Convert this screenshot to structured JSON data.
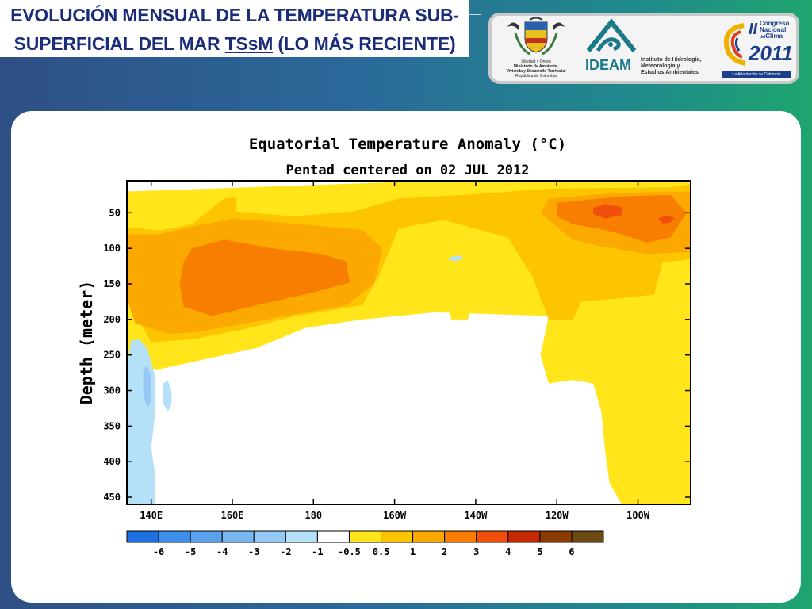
{
  "slide": {
    "title_line1": "EVOLUCIÓN MENSUAL DE LA TEMPERATURA SUB-",
    "title_line2_pre": "SUPERFICIAL DEL MAR ",
    "title_line2_u": "TSsM",
    "title_line2_post": " (LO MÁS RECIENTE)"
  },
  "logos": {
    "ministry": {
      "line1": "Libertad y Orden",
      "line2": "Ministerio de Ambiente,",
      "line3": "Vivienda y Desarrollo Territorial",
      "line4": "República de Colombia"
    },
    "ideam": {
      "word": "IDEAM",
      "sub1": "Instituto de Hidrología,",
      "sub2": "Meteorología y",
      "sub3": "Estudios Ambientales"
    },
    "congreso": {
      "numeral": "II",
      "line1": "Congreso",
      "line2": "Nacional",
      "line3_small": "del",
      "line3": "Clima",
      "year": "2011",
      "footer": "La Adaptación de Colombia"
    }
  },
  "chart_data": {
    "type": "heatmap",
    "title": "Equatorial Temperature Anomaly (°C)",
    "subtitle": "Pentad centered on 02 JUL 2012",
    "xlabel": "",
    "ylabel": "Depth (meter)",
    "x_ticks": [
      "140E",
      "160E",
      "180",
      "160W",
      "140W",
      "120W",
      "100W"
    ],
    "x_tick_lon_east": [
      140,
      160,
      180,
      200,
      220,
      240,
      260
    ],
    "xlim_lon_east": [
      134,
      273
    ],
    "y_ticks": [
      50,
      100,
      150,
      200,
      250,
      300,
      350,
      400,
      450
    ],
    "ylim": [
      5,
      460
    ],
    "colorbar": {
      "labels": [
        "-6",
        "-5",
        "-4",
        "-3",
        "-2",
        "-1",
        "-0.5",
        "0.5",
        "1",
        "2",
        "3",
        "4",
        "5",
        "6"
      ],
      "colors": [
        "#1e6fe0",
        "#3c8ee8",
        "#5aa2ee",
        "#78b6f2",
        "#96c8f6",
        "#b4e0f8",
        "#ffffff",
        "#ffe51a",
        "#fdc400",
        "#fba800",
        "#f77e00",
        "#ef4f0a",
        "#c62a00",
        "#8b3a00",
        "#6a4a10"
      ]
    },
    "regions": [
      {
        "level": "0.5",
        "color": "#ffe51a",
        "points": [
          [
            134,
            20
          ],
          [
            175,
            12
          ],
          [
            205,
            6
          ],
          [
            273,
            6
          ],
          [
            273,
            460
          ],
          [
            256,
            460
          ],
          [
            253,
            430
          ],
          [
            252,
            390
          ],
          [
            251,
            330
          ],
          [
            249,
            290
          ],
          [
            244,
            285
          ],
          [
            238,
            290
          ],
          [
            236,
            250
          ],
          [
            238,
            195
          ],
          [
            210,
            190
          ],
          [
            192,
            200
          ],
          [
            178,
            212
          ],
          [
            166,
            240
          ],
          [
            150,
            260
          ],
          [
            142,
            270
          ],
          [
            134,
            270
          ]
        ]
      },
      {
        "level": "0.5",
        "color": "#ffe51a",
        "points": [
          [
            195,
            90
          ],
          [
            201,
            60
          ],
          [
            208,
            36
          ],
          [
            214,
            45
          ],
          [
            220,
            100
          ],
          [
            222,
            140
          ],
          [
            218,
            200
          ],
          [
            214,
            200
          ],
          [
            212,
            145
          ],
          [
            206,
            110
          ],
          [
            200,
            100
          ]
        ]
      },
      {
        "level": "1",
        "color": "#fdc400",
        "points": [
          [
            134,
            70
          ],
          [
            142,
            75
          ],
          [
            150,
            66
          ],
          [
            158,
            30
          ],
          [
            161,
            28
          ],
          [
            161,
            48
          ],
          [
            175,
            55
          ],
          [
            190,
            48
          ],
          [
            201,
            30
          ],
          [
            220,
            24
          ],
          [
            238,
            16
          ],
          [
            268,
            14
          ],
          [
            273,
            10
          ],
          [
            273,
            115
          ],
          [
            266,
            120
          ],
          [
            264,
            165
          ],
          [
            256,
            170
          ],
          [
            246,
            175
          ],
          [
            244,
            200
          ],
          [
            238,
            200
          ],
          [
            234,
            140
          ],
          [
            228,
            85
          ],
          [
            212,
            60
          ],
          [
            201,
            72
          ],
          [
            196,
            140
          ],
          [
            192,
            180
          ],
          [
            176,
            195
          ],
          [
            162,
            215
          ],
          [
            150,
            228
          ],
          [
            140,
            232
          ],
          [
            134,
            170
          ]
        ]
      },
      {
        "level": "2",
        "color": "#fba800",
        "points": [
          [
            134,
            80
          ],
          [
            142,
            80
          ],
          [
            150,
            70
          ],
          [
            160,
            58
          ],
          [
            175,
            65
          ],
          [
            192,
            74
          ],
          [
            197,
            100
          ],
          [
            195,
            150
          ],
          [
            188,
            180
          ],
          [
            176,
            192
          ],
          [
            164,
            205
          ],
          [
            151,
            218
          ],
          [
            144,
            220
          ],
          [
            136,
            205
          ],
          [
            134,
            170
          ]
        ]
      },
      {
        "level": "2",
        "color": "#fba800",
        "points": [
          [
            238,
            30
          ],
          [
            255,
            22
          ],
          [
            273,
            20
          ],
          [
            273,
            105
          ],
          [
            262,
            108
          ],
          [
            250,
            96
          ],
          [
            244,
            88
          ],
          [
            240,
            70
          ],
          [
            236,
            50
          ]
        ]
      },
      {
        "level": "3",
        "color": "#f77e00",
        "points": [
          [
            150,
            100
          ],
          [
            158,
            88
          ],
          [
            170,
            100
          ],
          [
            182,
            108
          ],
          [
            188,
            118
          ],
          [
            189,
            148
          ],
          [
            180,
            162
          ],
          [
            166,
            180
          ],
          [
            155,
            195
          ],
          [
            148,
            182
          ],
          [
            147,
            150
          ],
          [
            148,
            120
          ]
        ]
      },
      {
        "level": "3",
        "color": "#f77e00",
        "points": [
          [
            240,
            36
          ],
          [
            256,
            27
          ],
          [
            268,
            25
          ],
          [
            272,
            50
          ],
          [
            268,
            85
          ],
          [
            262,
            92
          ],
          [
            256,
            80
          ],
          [
            250,
            72
          ],
          [
            244,
            66
          ],
          [
            240,
            55
          ]
        ]
      },
      {
        "level": "4",
        "color": "#ef4f0a",
        "points": [
          [
            249,
            43
          ],
          [
            252,
            38
          ],
          [
            256,
            42
          ],
          [
            256,
            53
          ],
          [
            252,
            58
          ],
          [
            249,
            52
          ]
        ]
      },
      {
        "level": "4",
        "color": "#ef4f0a",
        "points": [
          [
            265,
            58
          ],
          [
            267,
            54
          ],
          [
            269,
            57
          ],
          [
            268,
            64
          ],
          [
            266,
            65
          ]
        ]
      },
      {
        "level": "-0.5",
        "color": "#b4e0f8",
        "points": [
          [
            135,
            230
          ],
          [
            137,
            228
          ],
          [
            139,
            240
          ],
          [
            141,
            280
          ],
          [
            141,
            330
          ],
          [
            140,
            380
          ],
          [
            141,
            420
          ],
          [
            141,
            460
          ],
          [
            134,
            460
          ],
          [
            134,
            270
          ]
        ]
      },
      {
        "level": "-0.5",
        "color": "#b4e0f8",
        "points": [
          [
            143,
            290
          ],
          [
            144,
            285
          ],
          [
            145,
            300
          ],
          [
            145,
            320
          ],
          [
            144,
            330
          ],
          [
            143,
            318
          ]
        ]
      },
      {
        "level": "-0.5",
        "color": "#b4e0f8",
        "points": [
          [
            214,
            112
          ],
          [
            216,
            110
          ],
          [
            217,
            114
          ],
          [
            215,
            118
          ],
          [
            213,
            116
          ]
        ]
      },
      {
        "level": "-1",
        "color": "#96c8f6",
        "points": [
          [
            138,
            270
          ],
          [
            139,
            265
          ],
          [
            140,
            280
          ],
          [
            140,
            315
          ],
          [
            139,
            325
          ],
          [
            138,
            305
          ]
        ]
      }
    ]
  }
}
